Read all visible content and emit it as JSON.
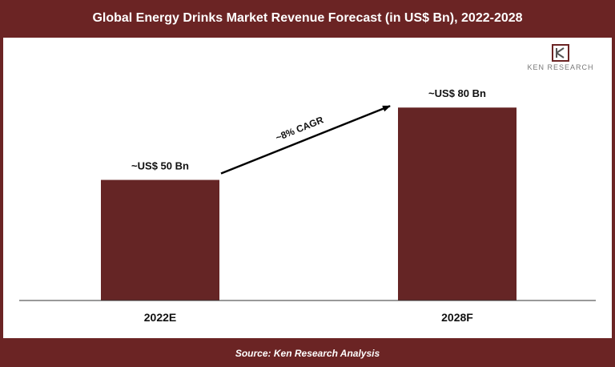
{
  "header": {
    "title": "Global Energy Drinks Market Revenue Forecast (in US$ Bn), 2022-2028"
  },
  "footer": {
    "source": "Source: Ken Research Analysis"
  },
  "logo": {
    "text": "KEN RESEARCH",
    "mark": "KR"
  },
  "colors": {
    "brand": "#6b2424",
    "bar": "#652525",
    "background": "#ffffff"
  },
  "chart_data": {
    "type": "bar",
    "title": "Global Energy Drinks Market Revenue Forecast (in US$ Bn), 2022-2028",
    "categories": [
      "2022E",
      "2028F"
    ],
    "values": [
      50,
      80
    ],
    "data_labels": [
      "~US$ 50 Bn",
      "~US$ 80 Bn"
    ],
    "ylim": [
      0,
      105
    ],
    "grid": false,
    "legend": "none",
    "annotation": {
      "text": "~8% CAGR",
      "from": "2022E",
      "to": "2028F"
    }
  }
}
